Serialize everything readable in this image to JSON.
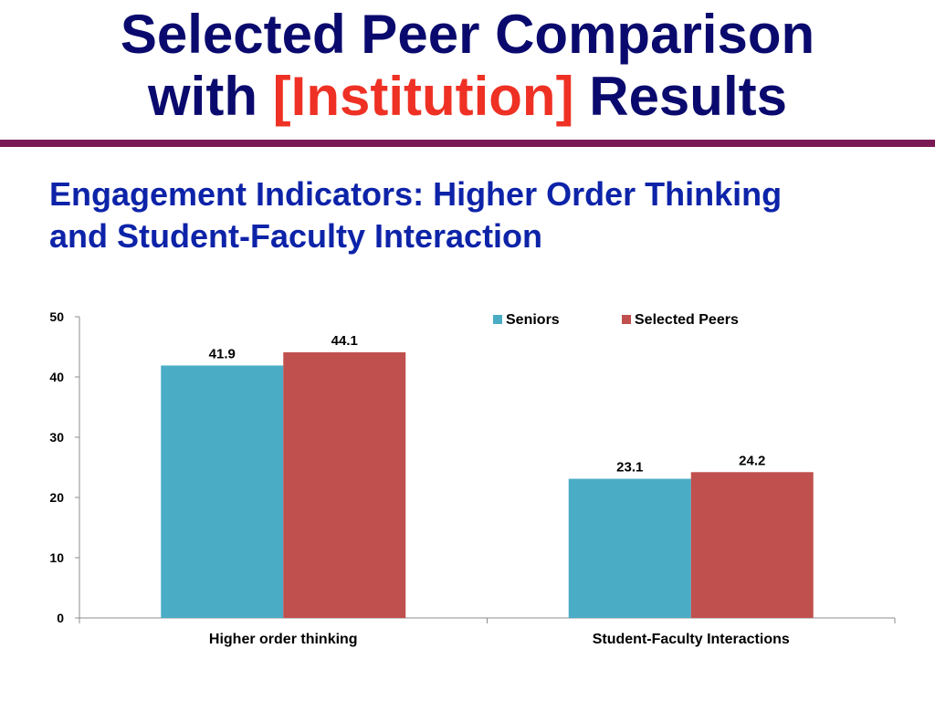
{
  "slide": {
    "title_line1": "Selected Peer Comparison",
    "title_with": "with",
    "title_institution": "[Institution]",
    "title_results": "Results",
    "subtitle_line1": "Engagement Indicators: Higher Order Thinking",
    "subtitle_line2": "and Student-Faculty Interaction"
  },
  "colors": {
    "title": "#0a0a6e",
    "accent": "#ee3124",
    "subtitle": "#0d23a8",
    "divider": "#7a1a55"
  },
  "chart_data": {
    "type": "bar",
    "categories": [
      "Higher order thinking",
      "Student-Faculty Interactions"
    ],
    "series": [
      {
        "name": "Seniors",
        "values": [
          41.9,
          23.1
        ],
        "color": "#4bacc6"
      },
      {
        "name": "Selected Peers",
        "values": [
          44.1,
          24.2
        ],
        "color": "#c0504d"
      }
    ],
    "ylim": [
      0,
      50
    ],
    "yticks": [
      0,
      10,
      20,
      30,
      40,
      50
    ],
    "legend": "top-right",
    "grid": false,
    "data_labels": true
  }
}
